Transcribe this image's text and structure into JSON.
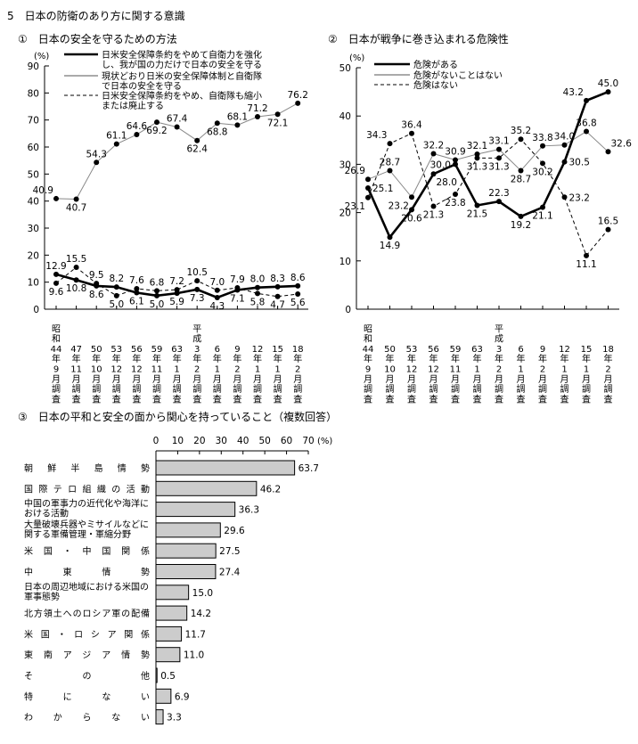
{
  "page_title": "5　日本の防衛のあり方に関する意識",
  "chart_data": [
    {
      "type": "line",
      "title": "①　日本の安全を守るための方法",
      "ylabel": "(%)",
      "ylim": [
        0,
        90
      ],
      "yticks": [
        0,
        10,
        20,
        30,
        40,
        50,
        60,
        70,
        80,
        90
      ],
      "categories": [
        "昭和44年9月調査",
        "47年11月調査",
        "50年10月調査",
        "53年12月調査",
        "56年12月調査",
        "59年11月調査",
        "63年1月調査",
        "平成3年2月調査",
        "6年1月調査",
        "9年2月調査",
        "12年1月調査",
        "15年1月調査",
        "18年2月調査"
      ],
      "legend": "top",
      "series": [
        {
          "name": "日米安全保障条約をやめて自衛力を強化し、我が国の力だけで日本の安全を守る",
          "name_lines": [
            "日米安全保障条約をやめて自衛力を強化",
            "し、我が国の力だけで日本の安全を守る"
          ],
          "style": "thick",
          "color": "#000000",
          "values": [
            12.9,
            10.8,
            8.6,
            8.2,
            6.1,
            5.0,
            5.9,
            7.3,
            4.3,
            7.1,
            8.0,
            8.3,
            8.6
          ]
        },
        {
          "name": "現状どおり日米の安全保障体制と自衛隊で日本の安全を守る",
          "name_lines": [
            "現状どおり日米の安全保障体制と自衛隊",
            "で日本の安全を守る"
          ],
          "style": "thin",
          "color": "#888888",
          "values": [
            40.9,
            40.7,
            54.3,
            61.1,
            64.6,
            69.2,
            67.4,
            62.4,
            68.8,
            68.1,
            71.2,
            72.1,
            76.2
          ]
        },
        {
          "name": "日米安全保障条約をやめ、自衛隊も縮小または廃止する",
          "name_lines": [
            "日米安全保障条約をやめ、自衛隊も縮小",
            "または廃止する"
          ],
          "style": "dashed",
          "color": "#000000",
          "values": [
            9.6,
            15.5,
            9.5,
            5.0,
            7.6,
            6.8,
            7.2,
            10.5,
            7.0,
            7.9,
            5.8,
            4.7,
            5.6
          ]
        }
      ]
    },
    {
      "type": "line",
      "title": "②　日本が戦争に巻き込まれる危険性",
      "ylabel": "(%)",
      "ylim": [
        0,
        50
      ],
      "yticks": [
        0,
        10,
        20,
        30,
        40,
        50
      ],
      "categories": [
        "昭和44年9月調査",
        "50年10月調査",
        "53年12月調査",
        "56年12月調査",
        "59年11月調査",
        "63年1月調査",
        "平成3年2月調査",
        "6年1月調査",
        "9年2月調査",
        "12年1月調査",
        "15年1月調査",
        "18年2月調査"
      ],
      "legend": "top-left",
      "series": [
        {
          "name": "危険がある",
          "style": "thick",
          "color": "#000000",
          "values": [
            25.1,
            14.9,
            20.6,
            28.0,
            30.0,
            21.5,
            22.3,
            19.2,
            21.1,
            30.5,
            43.2,
            45.0
          ]
        },
        {
          "name": "危険がないことはない",
          "style": "thin",
          "color": "#888888",
          "values": [
            26.9,
            28.7,
            23.2,
            32.2,
            30.9,
            32.1,
            33.1,
            28.7,
            33.8,
            34.0,
            36.8,
            32.6
          ]
        },
        {
          "name": "危険はない",
          "style": "dashed",
          "color": "#000000",
          "values": [
            23.1,
            34.3,
            36.4,
            21.3,
            23.8,
            31.3,
            31.3,
            35.2,
            30.2,
            23.2,
            11.1,
            16.5
          ]
        }
      ]
    },
    {
      "type": "bar",
      "orientation": "horizontal",
      "title": "③　日本の平和と安全の面から関心を持っていること（複数回答）",
      "xlabel": "(%)",
      "xlim": [
        0,
        70
      ],
      "xticks": [
        0,
        10,
        20,
        30,
        40,
        50,
        60,
        70
      ],
      "bar_color": "#cccccc",
      "categories": [
        "朝鮮半島情勢",
        "国際テロ組織の活動",
        "中国の軍事力の近代化や海洋における活動",
        "大量破壊兵器やミサイルなどに関する軍備管理・軍縮分野",
        "米国・中国関係",
        "中東情勢",
        "日本の周辺地域における米国の軍事態勢",
        "北方領土へのロシア軍の配備",
        "米国・ロシア関係",
        "東南アジア情勢",
        "その他",
        "特にない",
        "わからない"
      ],
      "category_lines": [
        [
          "朝鮮半島情勢"
        ],
        [
          "国際テロ組織の活動"
        ],
        [
          "中国の軍事力の近代化や海洋に",
          "おける活動"
        ],
        [
          "大量破壊兵器やミサイルなどに",
          "関する軍備管理・軍縮分野"
        ],
        [
          "米国・中国関係"
        ],
        [
          "中東情勢"
        ],
        [
          "日本の周辺地域における米国の",
          "軍事態勢"
        ],
        [
          "北方領土へのロシア軍の配備"
        ],
        [
          "米国・ロシア関係"
        ],
        [
          "東南アジア情勢"
        ],
        [
          "その他"
        ],
        [
          "特にない"
        ],
        [
          "わからない"
        ]
      ],
      "values": [
        63.7,
        46.2,
        36.3,
        29.6,
        27.5,
        27.4,
        15.0,
        14.2,
        11.7,
        11.0,
        0.5,
        6.9,
        3.3
      ]
    }
  ]
}
